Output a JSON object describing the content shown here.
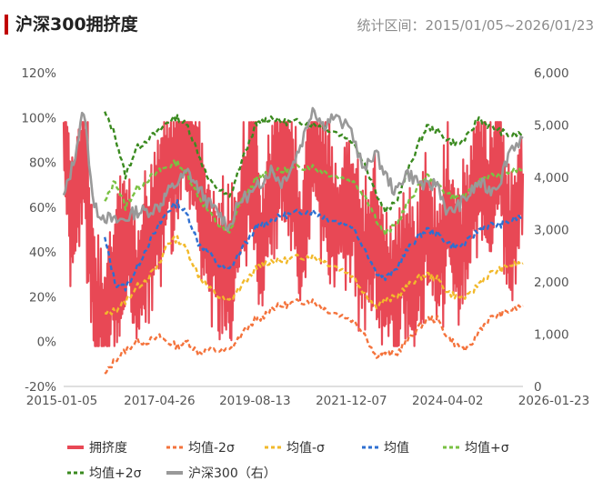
{
  "header": {
    "title": "沪深300拥挤度",
    "period": "统计区间：2015/01/05~2026/01/23"
  },
  "chart_data": {
    "type": "line",
    "title": "沪深300拥挤度",
    "x_tick_labels": [
      "2015-01-05",
      "2017-04-26",
      "2019-08-13",
      "2021-12-07",
      "2024-04-02",
      "2026-01-23"
    ],
    "x_range": [
      "2015-01-05",
      "2026-01-23"
    ],
    "y_left": {
      "ticks": [
        "120%",
        "100%",
        "80%",
        "60%",
        "40%",
        "20%",
        "0%",
        "-20%"
      ],
      "ylim": [
        -20,
        120
      ],
      "unit": "%"
    },
    "y_right": {
      "ticks": [
        "6,000",
        "5,000",
        "4,000",
        "3,000",
        "2,000",
        "1,000",
        "0"
      ],
      "ylim": [
        0,
        6000
      ]
    },
    "grid": false,
    "legend_position": "bottom",
    "x_dates": [
      "2015-01-05",
      "2015-04-01",
      "2015-07-01",
      "2015-10-01",
      "2016-01-01",
      "2016-04-01",
      "2016-07-01",
      "2016-10-01",
      "2017-01-01",
      "2017-04-26",
      "2017-07-01",
      "2017-10-01",
      "2018-01-01",
      "2018-04-01",
      "2018-07-01",
      "2018-10-01",
      "2019-01-01",
      "2019-04-01",
      "2019-08-13",
      "2019-10-01",
      "2020-01-01",
      "2020-04-01",
      "2020-07-01",
      "2020-10-01",
      "2021-01-01",
      "2021-04-01",
      "2021-07-01",
      "2021-12-07",
      "2022-04-01",
      "2022-07-01",
      "2022-10-01",
      "2023-01-01",
      "2023-04-01",
      "2023-07-01",
      "2023-10-01",
      "2024-01-01",
      "2024-04-02",
      "2024-07-01",
      "2024-10-01",
      "2025-01-01",
      "2025-04-01",
      "2025-07-01",
      "2025-10-01",
      "2026-01-23"
    ],
    "series": [
      {
        "name": "拥挤度",
        "color": "#e84855",
        "style": "solid",
        "axis": "left",
        "values": [
          92,
          55,
          88,
          18,
          8,
          30,
          52,
          22,
          38,
          58,
          75,
          85,
          92,
          70,
          45,
          35,
          30,
          55,
          78,
          40,
          65,
          85,
          70,
          40,
          88,
          72,
          55,
          60,
          35,
          48,
          30,
          20,
          40,
          25,
          55,
          30,
          62,
          35,
          55,
          82,
          60,
          88,
          40,
          75
        ]
      },
      {
        "name": "均值-2σ",
        "color": "#f4733c",
        "style": "dashed",
        "axis": "left",
        "values": [
          null,
          null,
          null,
          null,
          -15,
          -8,
          -4,
          0,
          0,
          2,
          0,
          -2,
          0,
          -5,
          -4,
          -4,
          -4,
          2,
          10,
          10,
          15,
          16,
          17,
          18,
          18,
          15,
          13,
          10,
          4,
          -6,
          -5,
          -6,
          0,
          5,
          10,
          10,
          2,
          -2,
          -4,
          5,
          10,
          12,
          14,
          16
        ]
      },
      {
        "name": "均值-σ",
        "color": "#f2b92b",
        "style": "dashed",
        "axis": "left",
        "values": [
          null,
          null,
          null,
          null,
          12,
          14,
          18,
          24,
          28,
          34,
          44,
          46,
          40,
          30,
          24,
          20,
          18,
          24,
          32,
          34,
          36,
          36,
          37,
          38,
          38,
          36,
          34,
          30,
          22,
          16,
          18,
          20,
          24,
          28,
          30,
          28,
          22,
          20,
          20,
          26,
          30,
          32,
          34,
          35
        ]
      },
      {
        "name": "均值",
        "color": "#2e6fd1",
        "style": "dashed",
        "axis": "left",
        "values": [
          null,
          null,
          null,
          null,
          46,
          26,
          24,
          32,
          42,
          52,
          58,
          62,
          56,
          44,
          40,
          34,
          32,
          40,
          50,
          52,
          54,
          56,
          57,
          58,
          58,
          56,
          54,
          52,
          42,
          32,
          28,
          32,
          40,
          46,
          50,
          48,
          44,
          42,
          45,
          50,
          52,
          52,
          54,
          56
        ]
      },
      {
        "name": "均值+σ",
        "color": "#7ac143",
        "style": "dashed",
        "axis": "left",
        "values": [
          null,
          null,
          null,
          null,
          62,
          72,
          60,
          68,
          72,
          76,
          78,
          80,
          74,
          65,
          58,
          52,
          48,
          62,
          72,
          74,
          76,
          76,
          77,
          78,
          78,
          76,
          74,
          72,
          66,
          56,
          48,
          52,
          60,
          68,
          74,
          70,
          66,
          64,
          66,
          72,
          74,
          74,
          76,
          77
        ]
      },
      {
        "name": "均值+2σ",
        "color": "#3a8a1f",
        "style": "dashed",
        "axis": "left",
        "values": [
          null,
          null,
          null,
          null,
          102,
          92,
          74,
          86,
          90,
          94,
          98,
          100,
          96,
          84,
          72,
          68,
          64,
          78,
          96,
          98,
          100,
          98,
          98,
          98,
          97,
          96,
          94,
          90,
          80,
          68,
          58,
          62,
          74,
          86,
          96,
          94,
          90,
          88,
          92,
          100,
          96,
          94,
          92,
          93
        ]
      },
      {
        "name": "沪深300（右）",
        "color": "#999999",
        "style": "solid",
        "axis": "right",
        "values": [
          3600,
          4300,
          5300,
          3400,
          3250,
          3150,
          3200,
          3350,
          3350,
          3450,
          3700,
          3900,
          4100,
          3800,
          3500,
          3300,
          3050,
          3550,
          3750,
          3900,
          4150,
          3900,
          4200,
          4700,
          5350,
          5000,
          5150,
          4900,
          4100,
          4500,
          4050,
          3700,
          4100,
          3950,
          3800,
          3900,
          3300,
          3450,
          3650,
          3900,
          3750,
          3900,
          4550,
          4750
        ]
      }
    ]
  }
}
